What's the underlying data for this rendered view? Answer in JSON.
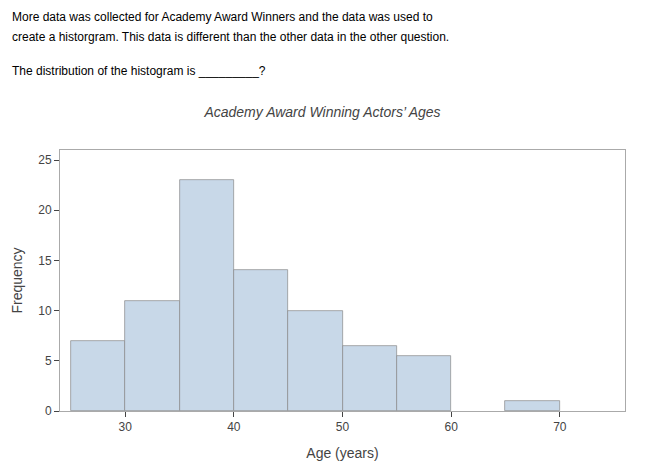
{
  "chart_data": {
    "type": "histogram",
    "title": "Academy Award Winning Actors’ Ages",
    "annotations": [
      "More data was collected for Academy Award Winners and the data was used to",
      "create a historgram. This data is different than the other data in the other question.",
      "The distribution of the histogram is _________?"
    ],
    "xlabel": "Age (years)",
    "ylabel": "Frequency",
    "bins": [
      25,
      30,
      35,
      40,
      45,
      50,
      55,
      60,
      65,
      70,
      75
    ],
    "values": [
      7,
      11,
      23,
      14,
      10,
      6.5,
      5.5,
      0,
      1,
      0
    ],
    "color": "#c8d8e8",
    "xlim": [
      24,
      76
    ],
    "ylim": [
      0,
      26
    ],
    "xticks": [
      30,
      40,
      50,
      60,
      70
    ],
    "yticks": [
      0,
      5,
      10,
      15,
      20,
      25
    ],
    "grid": false
  }
}
